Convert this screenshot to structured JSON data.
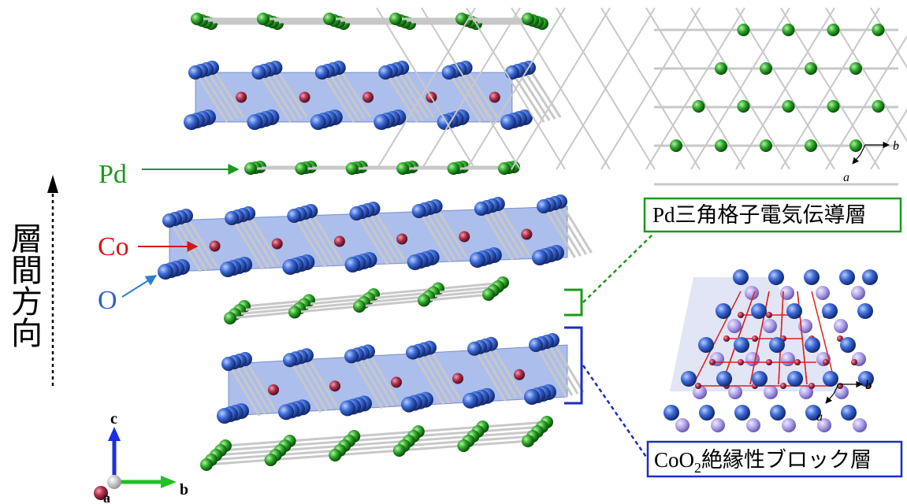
{
  "labels": {
    "direction": "層間方向",
    "pd": "Pd",
    "co": "Co",
    "o": "O"
  },
  "boxes": [
    {
      "text": "Pd三角格子電気伝導層"
    },
    {
      "parts": [
        "CoO",
        "2",
        "絶縁性ブロック層"
      ]
    }
  ],
  "axes": {
    "a": "a",
    "b": "b",
    "c": "c"
  },
  "insets": [
    {
      "b": "b",
      "a": "a"
    },
    {
      "b": "b",
      "a": "a"
    }
  ]
}
